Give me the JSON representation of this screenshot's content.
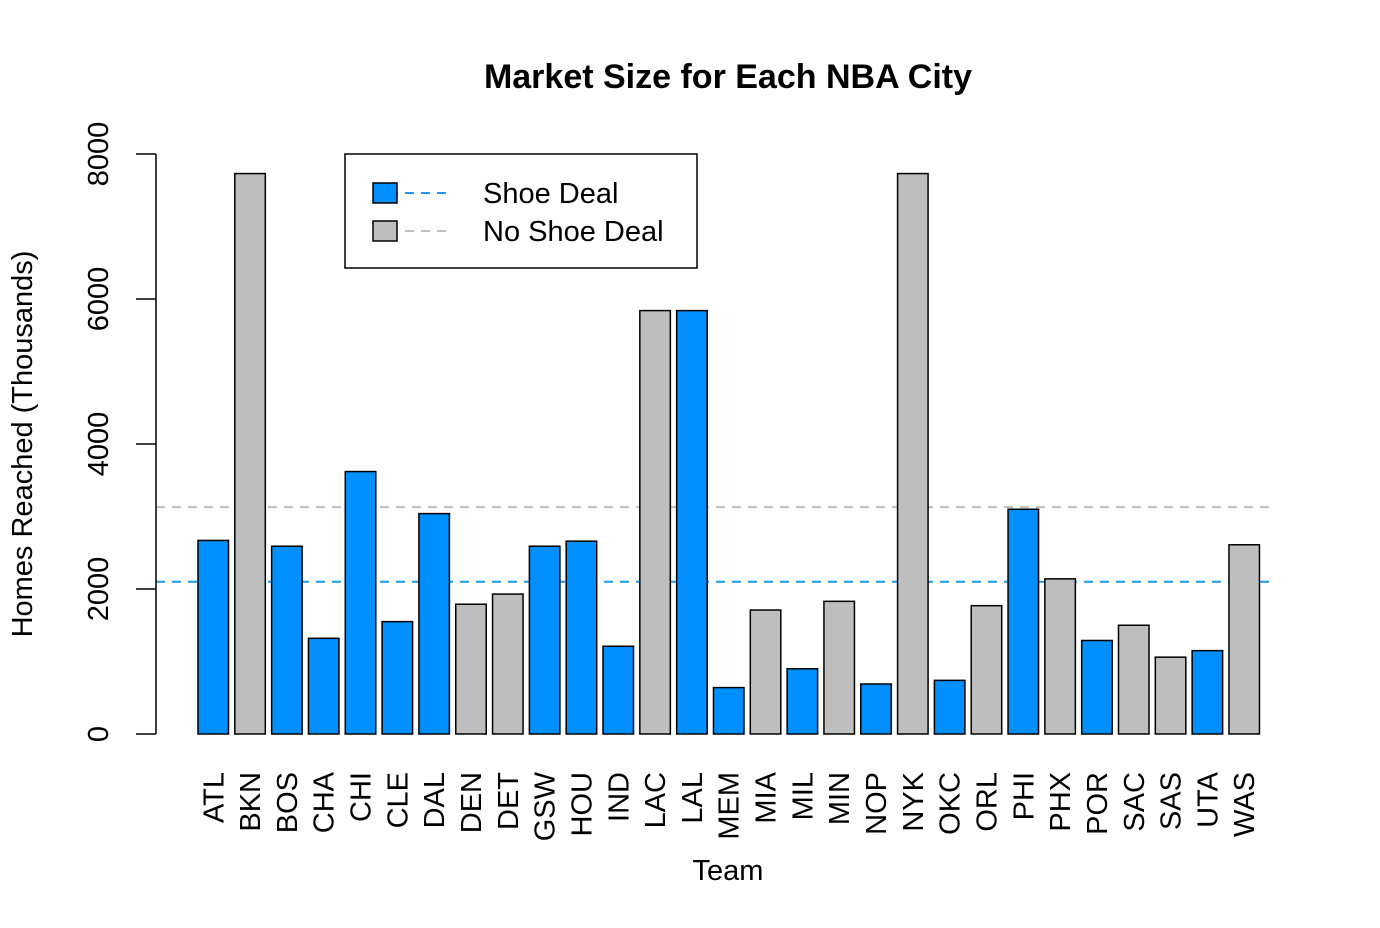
{
  "chart_data": {
    "type": "bar",
    "title": "Market Size for Each NBA City",
    "xlabel": "Team",
    "ylabel": "Homes Reached (Thousands)",
    "ylim": [
      0,
      8000
    ],
    "yticks": [
      0,
      2000,
      4000,
      6000,
      8000
    ],
    "categories": [
      "ATL",
      "BKN",
      "BOS",
      "CHA",
      "CHI",
      "CLE",
      "DAL",
      "DEN",
      "DET",
      "GSW",
      "HOU",
      "IND",
      "LAC",
      "LAL",
      "MEM",
      "MIA",
      "MIL",
      "MIN",
      "NOP",
      "NYK",
      "OKC",
      "ORL",
      "PHI",
      "PHX",
      "POR",
      "SAC",
      "SAS",
      "UTA",
      "WAS"
    ],
    "values": [
      2670,
      7730,
      2590,
      1320,
      3620,
      1550,
      3040,
      1790,
      1930,
      2590,
      2660,
      1210,
      5840,
      5840,
      640,
      1710,
      900,
      1830,
      690,
      7730,
      740,
      1770,
      3100,
      2140,
      1290,
      1500,
      1060,
      1150,
      2610
    ],
    "groups": [
      "Shoe Deal",
      "No Shoe Deal",
      "Shoe Deal",
      "Shoe Deal",
      "Shoe Deal",
      "Shoe Deal",
      "Shoe Deal",
      "No Shoe Deal",
      "No Shoe Deal",
      "Shoe Deal",
      "Shoe Deal",
      "Shoe Deal",
      "No Shoe Deal",
      "Shoe Deal",
      "Shoe Deal",
      "No Shoe Deal",
      "Shoe Deal",
      "No Shoe Deal",
      "Shoe Deal",
      "No Shoe Deal",
      "Shoe Deal",
      "No Shoe Deal",
      "Shoe Deal",
      "No Shoe Deal",
      "Shoe Deal",
      "No Shoe Deal",
      "No Shoe Deal",
      "Shoe Deal",
      "No Shoe Deal"
    ],
    "series_colors": {
      "Shoe Deal": "#008fff",
      "No Shoe Deal": "#bebebe"
    },
    "reference_lines": [
      {
        "group": "Shoe Deal",
        "value": 2100,
        "color": "#1a9ae6"
      },
      {
        "group": "No Shoe Deal",
        "value": 3130,
        "color": "#bebebe"
      }
    ],
    "legend": {
      "placement": "top-left",
      "entries": [
        {
          "label": "Shoe Deal",
          "color": "#008fff",
          "line_color": "#1a9ae6"
        },
        {
          "label": "No Shoe Deal",
          "color": "#bebebe",
          "line_color": "#bebebe"
        }
      ]
    },
    "grid": false
  }
}
